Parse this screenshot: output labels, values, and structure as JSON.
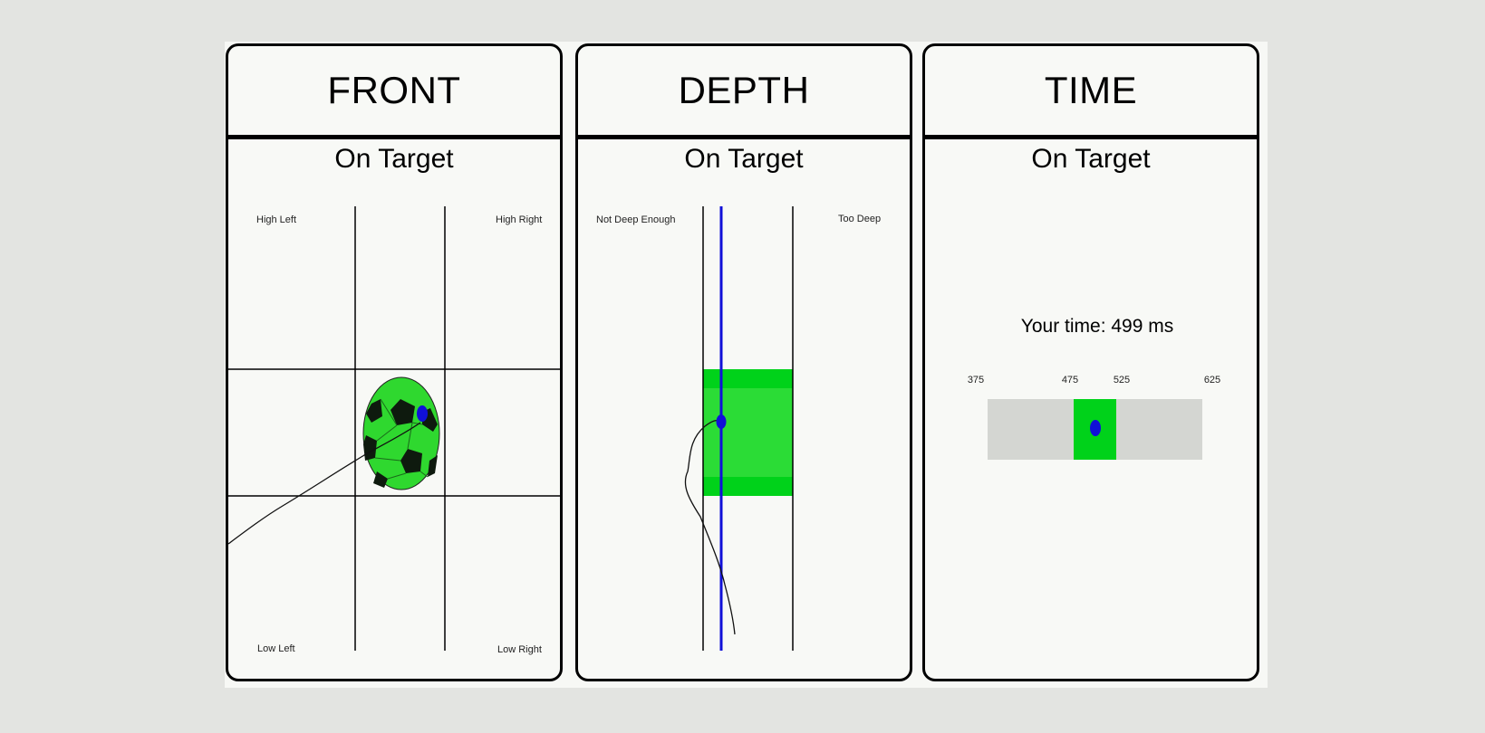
{
  "panels": {
    "front": {
      "title": "FRONT",
      "status": "On Target",
      "labels": {
        "high_left": "High Left",
        "high_right": "High Right",
        "low_left": "Low Left",
        "low_right": "Low Right"
      }
    },
    "depth": {
      "title": "DEPTH",
      "status": "On Target",
      "labels": {
        "not_deep": "Not Deep Enough",
        "too_deep": "Too Deep"
      }
    },
    "time": {
      "title": "TIME",
      "status": "On Target",
      "result_text": "Your time: 499 ms",
      "value_ms": 499,
      "scale": {
        "min": "375",
        "target_low": "475",
        "target_high": "525",
        "max": "625"
      }
    }
  },
  "colors": {
    "target_green": "#00d21a",
    "target_inner": "#2bdc36",
    "marker_blue": "#1010d8",
    "bar_gray": "#d4d6d2"
  },
  "icons": {
    "ball": "soccer-ball-icon",
    "marker": "dot-marker-icon"
  }
}
